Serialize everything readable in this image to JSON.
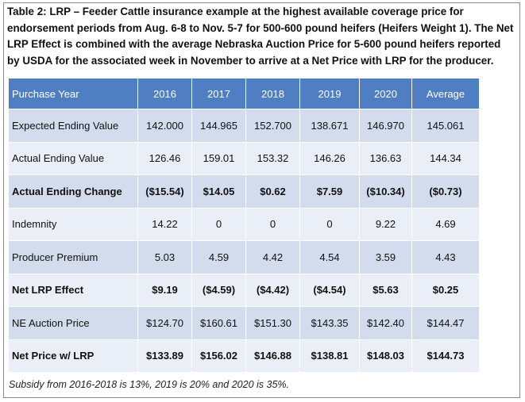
{
  "caption": "Table 2: LRP – Feeder Cattle insurance example at the highest available coverage price for endorsement periods from Aug. 6-8 to Nov. 5-7 for 500-600 pound heifers (Heifers Weight 1). The Net LRP Effect is combined with the average Nebraska Auction Price for 5-600 pound heifers reported by USDA for the associated week in November to arrive at a Net Price with LRP for the producer.",
  "table": {
    "headers": [
      "Purchase Year",
      "2016",
      "2017",
      "2018",
      "2019",
      "2020",
      "Average"
    ],
    "rows": [
      {
        "label": "Expected Ending Value",
        "bold": false,
        "values": [
          "142.000",
          "144.965",
          "152.700",
          "138.671",
          "146.970",
          "145.061"
        ]
      },
      {
        "label": "Actual Ending Value",
        "bold": false,
        "values": [
          "126.46",
          "159.01",
          "153.32",
          "146.26",
          "136.63",
          "144.34"
        ]
      },
      {
        "label": "Actual Ending Change",
        "bold": true,
        "values": [
          "($15.54)",
          "$14.05",
          "$0.62",
          "$7.59",
          "($10.34)",
          "($0.73)"
        ]
      },
      {
        "label": "Indemnity",
        "bold": false,
        "values": [
          "14.22",
          "0",
          "0",
          "0",
          "9.22",
          "4.69"
        ]
      },
      {
        "label": "Producer Premium",
        "bold": false,
        "values": [
          "5.03",
          "4.59",
          "4.42",
          "4.54",
          "3.59",
          "4.43"
        ]
      },
      {
        "label": "Net LRP Effect",
        "bold": true,
        "values": [
          "$9.19",
          "($4.59)",
          "($4.42)",
          "($4.54)",
          "$5.63",
          "$0.25"
        ]
      },
      {
        "label": "NE Auction Price",
        "bold": false,
        "values": [
          "$124.70",
          "$160.61",
          "$151.30",
          "$143.35",
          "$142.40",
          "$144.47"
        ]
      },
      {
        "label": "Net Price w/ LRP",
        "bold": true,
        "values": [
          "$133.89",
          "$156.02",
          "$146.88",
          "$138.81",
          "$148.03",
          "$144.73"
        ]
      }
    ]
  },
  "footnote": "Subsidy from 2016-2018 is 13%, 2019 is 20% and 2020 is 35%."
}
